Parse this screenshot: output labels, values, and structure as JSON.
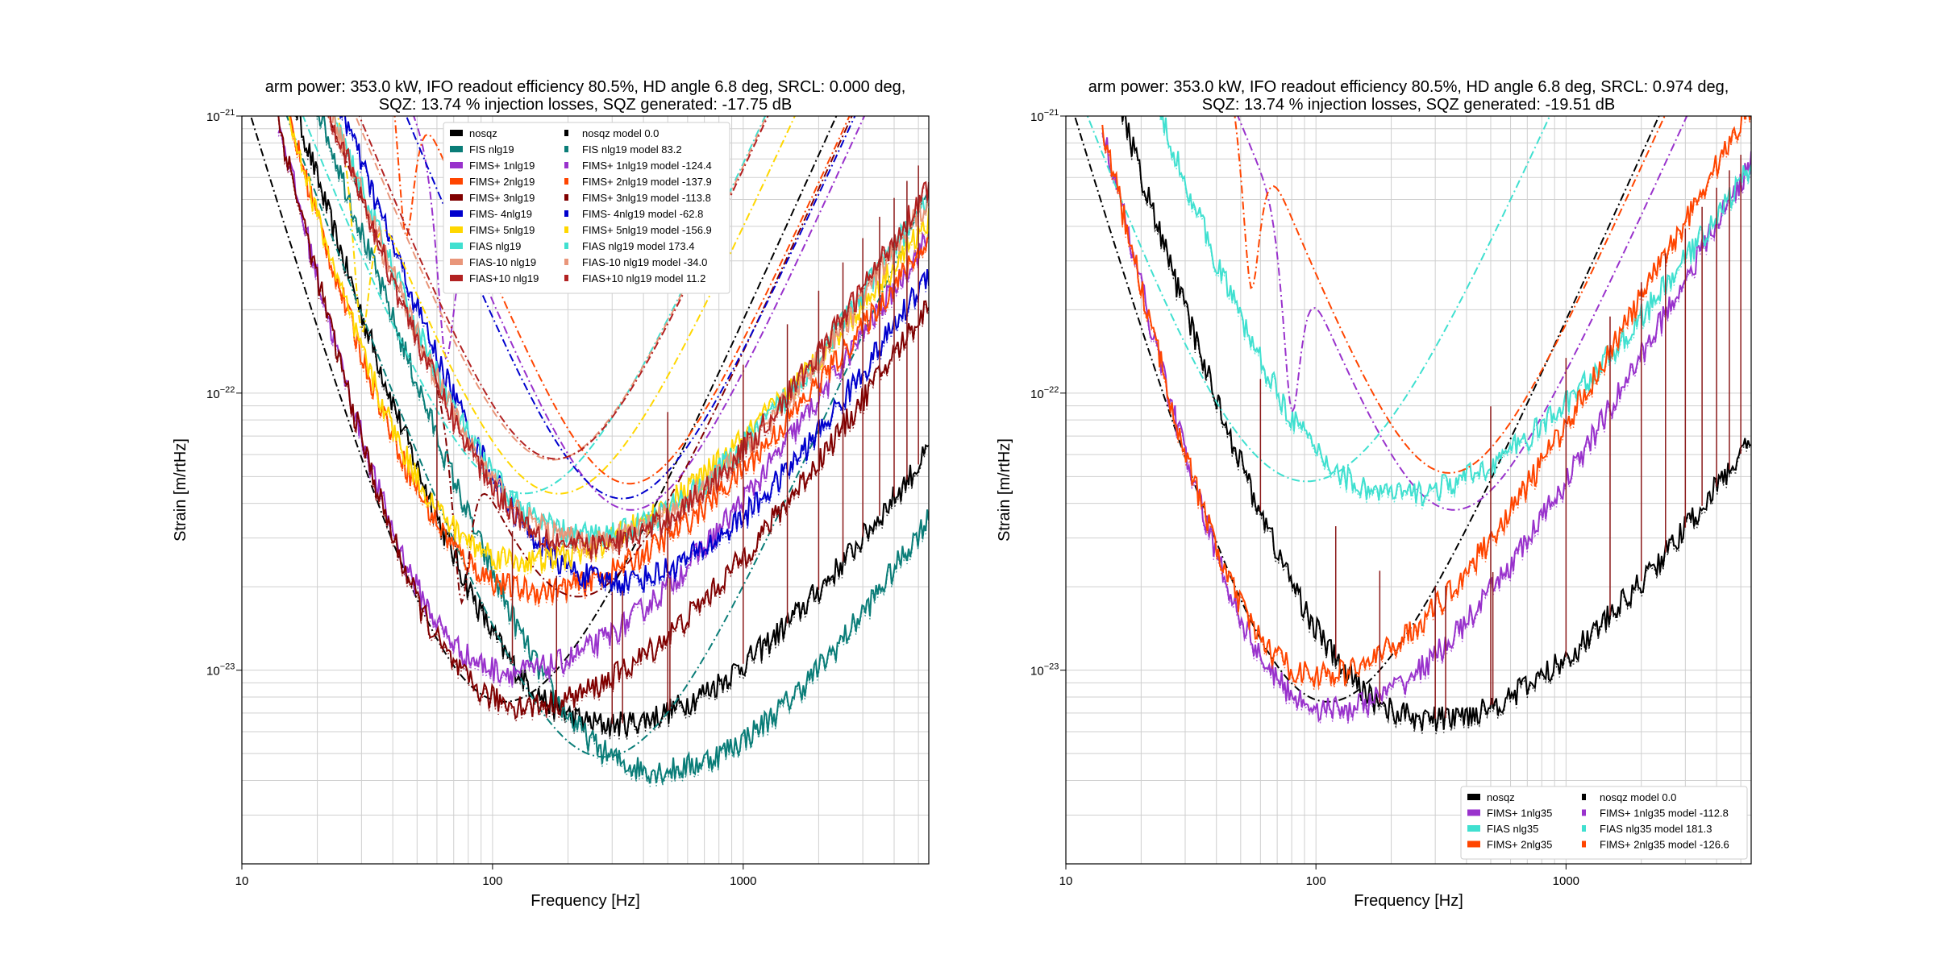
{
  "figure": {
    "background": "#ffffff"
  },
  "chart_data": [
    {
      "type": "line",
      "title_lines": [
        "arm power: 353.0 kW, IFO readout efficiency 80.5%, HD angle 6.8 deg, SRCL: 0.000 deg,",
        "SQZ: 13.74 % injection losses, SQZ generated: -17.75 dB"
      ],
      "xlabel": "Frequency [Hz]",
      "ylabel": "Strain [m/rtHz]",
      "xscale": "log",
      "yscale": "log",
      "xlim": [
        10,
        5500
      ],
      "ylim": [
        2e-24,
        1e-21
      ],
      "grid": true,
      "xtick_labels": [
        {
          "v": 10,
          "t": "10"
        },
        {
          "v": 100,
          "t": "100"
        },
        {
          "v": 1000,
          "t": "1000"
        }
      ],
      "ytick_labels": [
        {
          "v": 1e-21,
          "base": "10",
          "exp": "−21"
        },
        {
          "v": 1e-22,
          "base": "10",
          "exp": "−22"
        },
        {
          "v": 1e-23,
          "base": "10",
          "exp": "−23"
        }
      ],
      "legend_position": "top-center",
      "legend": [
        [
          "nosqz",
          "nosqz model 0.0"
        ],
        [
          "FIS nlg19",
          "FIS nlg19 model 83.2"
        ],
        [
          "FIMS+ 1nlg19",
          "FIMS+ 1nlg19 model -124.4"
        ],
        [
          "FIMS+ 2nlg19",
          "FIMS+ 2nlg19 model -137.9"
        ],
        [
          "FIMS+ 3nlg19",
          "FIMS+ 3nlg19 model -113.8"
        ],
        [
          "FIMS- 4nlg19",
          "FIMS- 4nlg19 model -62.8"
        ],
        [
          "FIMS+ 5nlg19",
          "FIMS+ 5nlg19 model -156.9"
        ],
        [
          "FIAS nlg19",
          "FIAS nlg19 model 173.4"
        ],
        [
          "FIAS-10 nlg19",
          "FIAS-10 nlg19 model -34.0"
        ],
        [
          "FIAS+10 nlg19",
          "FIAS+10 nlg19 model 11.2"
        ]
      ],
      "series": [
        {
          "name": "nosqz",
          "color": "#000000",
          "model": {
            "a": 3.6e-24,
            "f0": 100,
            "k": 0.5,
            "m": 0.5,
            "dip": null
          },
          "meas_min": 4.6e-24,
          "meas_fmin": 200,
          "meas_high": 4.2e-23
        },
        {
          "name": "FIS nlg19",
          "color": "#0a7d78",
          "model": {
            "a": 2.25e-24,
            "f0": 210,
            "k": 1.0,
            "m": 0.35,
            "dip": null
          },
          "meas_min": 3.1e-24,
          "meas_fmin": 330,
          "meas_high": 2.6e-23
        },
        {
          "name": "FIMS+ 1nlg19",
          "color": "#9932cc",
          "model": {
            "a": 1.2e-23,
            "f0": 300,
            "k": 1.5,
            "m": 0.8,
            "dip": 65
          },
          "meas_min": 7e-24,
          "meas_fmin": 80,
          "meas_high": 1.3e-22
        },
        {
          "name": "FIMS+ 2nlg19",
          "color": "#ff4500",
          "model": {
            "a": 1.4e-23,
            "f0": 300,
            "k": 1.6,
            "m": 0.9,
            "dip": 45
          },
          "meas_min": 1.4e-23,
          "meas_fmin": 100,
          "meas_high": 1.8e-22
        },
        {
          "name": "FIMS+ 3nlg19",
          "color": "#800000",
          "model": {
            "a": 6e-24,
            "f0": 200,
            "k": 1.2,
            "m": 0.9,
            "dip": 75
          },
          "meas_min": 5.3e-24,
          "meas_fmin": 90,
          "meas_high": 8.5e-23
        },
        {
          "name": "FIMS- 4nlg19",
          "color": "#0000cd",
          "model": {
            "a": 1.55e-23,
            "f0": 350,
            "k": 0.7,
            "m": 1.0,
            "dip": null
          },
          "meas_min": 1.5e-23,
          "meas_fmin": 220,
          "meas_high": 1.6e-22
        },
        {
          "name": "FIMS+ 5nlg19",
          "color": "#ffd700",
          "model": {
            "a": 1.9e-23,
            "f0": 200,
            "k": 0.5,
            "m": 0.8,
            "dip": 30
          },
          "meas_min": 1.8e-23,
          "meas_fmin": 90,
          "meas_high": 2.2e-22
        },
        {
          "name": "FIAS nlg19",
          "color": "#40e0d0",
          "model": {
            "a": 2.1e-23,
            "f0": 170,
            "k": 0.3,
            "m": 0.9,
            "dip": null
          },
          "meas_min": 2.2e-23,
          "meas_fmin": 170,
          "meas_high": 2.7e-22
        },
        {
          "name": "FIAS-10 nlg19",
          "color": "#e9967a",
          "model": {
            "a": 2.05e-23,
            "f0": 170,
            "k": 0.9,
            "m": 0.9,
            "dip": null
          },
          "meas_min": 2.1e-23,
          "meas_fmin": 170,
          "meas_high": 2.6e-22
        },
        {
          "name": "FIAS+10 nlg19",
          "color": "#b22222",
          "model": {
            "a": 2e-23,
            "f0": 170,
            "k": 1.0,
            "m": 0.9,
            "dip": null
          },
          "meas_min": 2e-23,
          "meas_fmin": 170,
          "meas_high": 2.7e-22
        }
      ]
    },
    {
      "type": "line",
      "title_lines": [
        "arm power: 353.0 kW, IFO readout efficiency 80.5%, HD angle 6.8 deg, SRCL: 0.974 deg,",
        "SQZ: 13.74 % injection losses, SQZ generated: -19.51 dB"
      ],
      "xlabel": "Frequency [Hz]",
      "ylabel": "Strain [m/rtHz]",
      "xscale": "log",
      "yscale": "log",
      "xlim": [
        10,
        5500
      ],
      "ylim": [
        2e-24,
        1e-21
      ],
      "grid": true,
      "xtick_labels": [
        {
          "v": 10,
          "t": "10"
        },
        {
          "v": 100,
          "t": "100"
        },
        {
          "v": 1000,
          "t": "1000"
        }
      ],
      "ytick_labels": [
        {
          "v": 1e-21,
          "base": "10",
          "exp": "−21"
        },
        {
          "v": 1e-22,
          "base": "10",
          "exp": "−22"
        },
        {
          "v": 1e-23,
          "base": "10",
          "exp": "−23"
        }
      ],
      "legend_position": "bottom-right",
      "legend": [
        [
          "nosqz",
          "nosqz model 0.0"
        ],
        [
          "FIMS+ 1nlg35",
          "FIMS+ 1nlg35 model -112.8"
        ],
        [
          "FIAS nlg35",
          "FIAS nlg35 model 181.3"
        ],
        [
          "FIMS+ 2nlg35",
          "FIMS+ 2nlg35 model -126.6"
        ]
      ],
      "series": [
        {
          "name": "nosqz",
          "color": "#000000",
          "model": {
            "a": 3.6e-24,
            "f0": 100,
            "k": 0.5,
            "m": 0.5,
            "dip": null
          },
          "meas_min": 4.8e-24,
          "meas_fmin": 200,
          "meas_high": 4.5e-23
        },
        {
          "name": "FIMS+ 1nlg35",
          "color": "#9932cc",
          "model": {
            "a": 1.2e-23,
            "f0": 300,
            "k": 1.5,
            "m": 0.8,
            "dip": 80
          },
          "meas_min": 5e-24,
          "meas_fmin": 80,
          "meas_high": 1.5e-22
        },
        {
          "name": "FIAS nlg35",
          "color": "#40e0d0",
          "model": {
            "a": 2.7e-23,
            "f0": 120,
            "k": 0.2,
            "m": 0.7,
            "dip": null
          },
          "meas_min": 3.1e-23,
          "meas_fmin": 150,
          "meas_high": 3.6e-22
        },
        {
          "name": "FIMS+ 2nlg35",
          "color": "#ff4500",
          "model": {
            "a": 1.6e-23,
            "f0": 300,
            "k": 1.4,
            "m": 0.9,
            "dip": 55
          },
          "meas_min": 6.6e-24,
          "meas_fmin": 70,
          "meas_high": 2.2e-22
        }
      ]
    }
  ],
  "mains_lines_hz": [
    60,
    120,
    180,
    300,
    330,
    500,
    510,
    1000,
    1500,
    2000,
    2500,
    3000,
    3500,
    4000,
    4500,
    5000
  ]
}
